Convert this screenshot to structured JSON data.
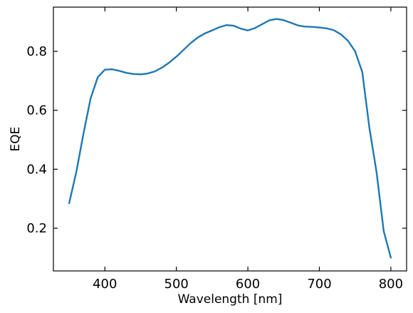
{
  "chart_data": {
    "type": "line",
    "title": "",
    "xlabel": "Wavelength [nm]",
    "ylabel": "EQE",
    "xlim": [
      328,
      822
    ],
    "ylim": [
      0.055,
      0.95
    ],
    "xticks": [
      400,
      500,
      600,
      700,
      800
    ],
    "yticks": [
      0.2,
      0.4,
      0.6,
      0.8
    ],
    "xtick_labels": [
      "400",
      "500",
      "600",
      "700",
      "800"
    ],
    "ytick_labels": [
      "0.2",
      "0.4",
      "0.6",
      "0.8"
    ],
    "grid": false,
    "series": [
      {
        "color": "#1f77b4",
        "x": [
          350,
          360,
          370,
          380,
          390,
          400,
          410,
          420,
          430,
          440,
          450,
          460,
          470,
          480,
          490,
          500,
          510,
          520,
          530,
          540,
          550,
          560,
          570,
          580,
          590,
          600,
          610,
          620,
          630,
          640,
          650,
          660,
          670,
          680,
          690,
          700,
          710,
          720,
          730,
          740,
          750,
          760,
          770,
          780,
          790,
          800
        ],
        "y": [
          0.285,
          0.39,
          0.52,
          0.64,
          0.712,
          0.738,
          0.739,
          0.734,
          0.727,
          0.723,
          0.722,
          0.725,
          0.732,
          0.745,
          0.762,
          0.782,
          0.805,
          0.828,
          0.847,
          0.861,
          0.871,
          0.882,
          0.889,
          0.887,
          0.877,
          0.871,
          0.879,
          0.892,
          0.905,
          0.91,
          0.906,
          0.897,
          0.888,
          0.884,
          0.883,
          0.881,
          0.878,
          0.872,
          0.858,
          0.836,
          0.8,
          0.73,
          0.54,
          0.39,
          0.19,
          0.1
        ]
      }
    ]
  }
}
